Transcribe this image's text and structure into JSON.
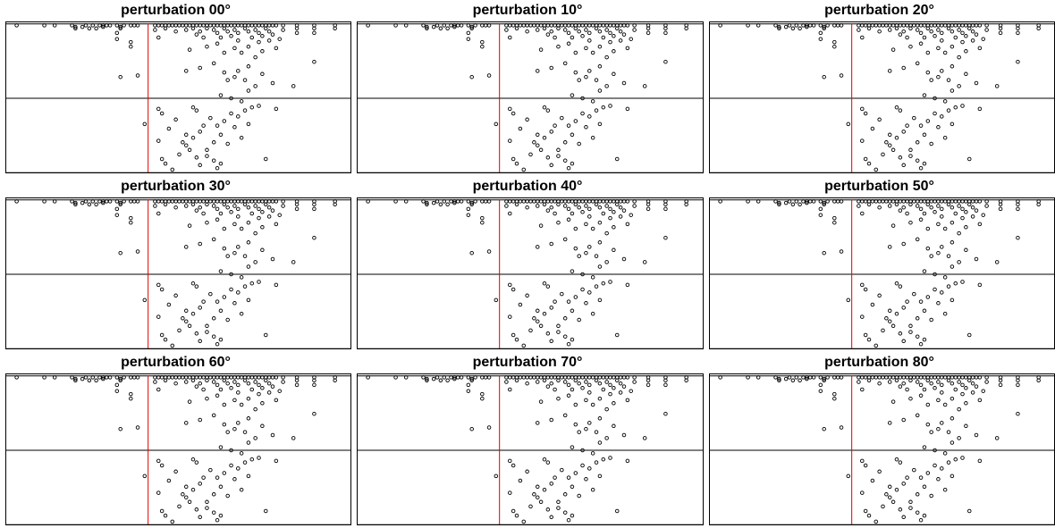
{
  "figure": {
    "panel_titles": [
      "perturbation 00°",
      "perturbation 10°",
      "perturbation 20°",
      "perturbation 30°",
      "perturbation 40°",
      "perturbation 50°",
      "perturbation 60°",
      "perturbation 70°",
      "perturbation 80°"
    ]
  },
  "chart_data": {
    "type": "scatter",
    "description_colors": {
      "points": "#000000",
      "reference_line": "#e00000",
      "frame": "#000000"
    },
    "grid": false,
    "xlim": [
      0,
      100
    ],
    "ylim": [
      0,
      100
    ],
    "reference_x": 41,
    "horizontal_lines_y": [
      99,
      50,
      1
    ],
    "points": [
      [
        3,
        98
      ],
      [
        11,
        98
      ],
      [
        14,
        98
      ],
      [
        19,
        98
      ],
      [
        20,
        96
      ],
      [
        23,
        98
      ],
      [
        25,
        98
      ],
      [
        26,
        96
      ],
      [
        27,
        98
      ],
      [
        28,
        98
      ],
      [
        29,
        98
      ],
      [
        30,
        98
      ],
      [
        32,
        98
      ],
      [
        33,
        96
      ],
      [
        34,
        98
      ],
      [
        36,
        98
      ],
      [
        37,
        98
      ],
      [
        38,
        98
      ],
      [
        20,
        97
      ],
      [
        22,
        97
      ],
      [
        24,
        96
      ],
      [
        28,
        97
      ],
      [
        33,
        97
      ],
      [
        32,
        93
      ],
      [
        32,
        89
      ],
      [
        36,
        87
      ],
      [
        36,
        84
      ],
      [
        33,
        64
      ],
      [
        38,
        65
      ],
      [
        43,
        98
      ],
      [
        44,
        98
      ],
      [
        45,
        98
      ],
      [
        46,
        98
      ],
      [
        47,
        98
      ],
      [
        48,
        98
      ],
      [
        49,
        98
      ],
      [
        50,
        98
      ],
      [
        51,
        98
      ],
      [
        52,
        98
      ],
      [
        53,
        98
      ],
      [
        54,
        98
      ],
      [
        55,
        98
      ],
      [
        56,
        98
      ],
      [
        57,
        98
      ],
      [
        58,
        98
      ],
      [
        59,
        98
      ],
      [
        60,
        98
      ],
      [
        61,
        98
      ],
      [
        62,
        98
      ],
      [
        63,
        98
      ],
      [
        64,
        98
      ],
      [
        65,
        98
      ],
      [
        66,
        98
      ],
      [
        67,
        98
      ],
      [
        68,
        98
      ],
      [
        69,
        98
      ],
      [
        70,
        98
      ],
      [
        71,
        98
      ],
      [
        72,
        98
      ],
      [
        73,
        98
      ],
      [
        74,
        98
      ],
      [
        75,
        98
      ],
      [
        76,
        98
      ],
      [
        77,
        98
      ],
      [
        78,
        98
      ],
      [
        80,
        98
      ],
      [
        84,
        98
      ],
      [
        89,
        98
      ],
      [
        95,
        98
      ],
      [
        43,
        95
      ],
      [
        46,
        96
      ],
      [
        49,
        94
      ],
      [
        52,
        95
      ],
      [
        54,
        96
      ],
      [
        56,
        94
      ],
      [
        58,
        96
      ],
      [
        60,
        95
      ],
      [
        61,
        93
      ],
      [
        63,
        96
      ],
      [
        64,
        94
      ],
      [
        66,
        95
      ],
      [
        67,
        93
      ],
      [
        69,
        96
      ],
      [
        70,
        94
      ],
      [
        72,
        95
      ],
      [
        73,
        93
      ],
      [
        75,
        96
      ],
      [
        76,
        94
      ],
      [
        77,
        92
      ],
      [
        80,
        95
      ],
      [
        84,
        96
      ],
      [
        84,
        93
      ],
      [
        89,
        96
      ],
      [
        89,
        93
      ],
      [
        95,
        96
      ],
      [
        44,
        90
      ],
      [
        55,
        92
      ],
      [
        57,
        90
      ],
      [
        62,
        90
      ],
      [
        65,
        91
      ],
      [
        67,
        88
      ],
      [
        71,
        90
      ],
      [
        73,
        87
      ],
      [
        74,
        91
      ],
      [
        76,
        88
      ],
      [
        79,
        89
      ],
      [
        53,
        82
      ],
      [
        58,
        84
      ],
      [
        61,
        86
      ],
      [
        63,
        80
      ],
      [
        66,
        83
      ],
      [
        68,
        80
      ],
      [
        70,
        84
      ],
      [
        72,
        77
      ],
      [
        74,
        81
      ],
      [
        78,
        83
      ],
      [
        89,
        74
      ],
      [
        52,
        68
      ],
      [
        56,
        70
      ],
      [
        60,
        73
      ],
      [
        63,
        67
      ],
      [
        64,
        62
      ],
      [
        66,
        64
      ],
      [
        67,
        68
      ],
      [
        69,
        62
      ],
      [
        70,
        71
      ],
      [
        72,
        58
      ],
      [
        74,
        66
      ],
      [
        77,
        60
      ],
      [
        83,
        58
      ],
      [
        62,
        52
      ],
      [
        65,
        50
      ],
      [
        68,
        48
      ],
      [
        70,
        55
      ],
      [
        44,
        43
      ],
      [
        45,
        40
      ],
      [
        47,
        30
      ],
      [
        49,
        36
      ],
      [
        51,
        21
      ],
      [
        52,
        26
      ],
      [
        53,
        16
      ],
      [
        54,
        44
      ],
      [
        55,
        42
      ],
      [
        56,
        28
      ],
      [
        57,
        32
      ],
      [
        58,
        12
      ],
      [
        59,
        37
      ],
      [
        60,
        21
      ],
      [
        61,
        32
      ],
      [
        62,
        26
      ],
      [
        63,
        35
      ],
      [
        64,
        20
      ],
      [
        65,
        40
      ],
      [
        66,
        31
      ],
      [
        67,
        38
      ],
      [
        68,
        24
      ],
      [
        69,
        42
      ],
      [
        70,
        33
      ],
      [
        71,
        44
      ],
      [
        73,
        45
      ],
      [
        75,
        10
      ],
      [
        78,
        43
      ],
      [
        40,
        33
      ],
      [
        44,
        22
      ],
      [
        45,
        10
      ],
      [
        46,
        7
      ],
      [
        48,
        3
      ],
      [
        50,
        13
      ],
      [
        52,
        19
      ],
      [
        54,
        24
      ],
      [
        55,
        11
      ],
      [
        56,
        6
      ],
      [
        58,
        16
      ],
      [
        60,
        9
      ],
      [
        61,
        4
      ],
      [
        62,
        7
      ]
    ]
  }
}
